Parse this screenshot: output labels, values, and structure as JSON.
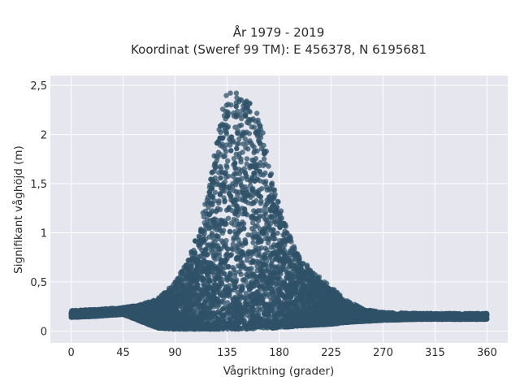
{
  "chart_data": {
    "type": "scatter",
    "title_line1": "År 1979 - 2019",
    "title_line2": "Koordinat (Sweref 99 TM): E 456378, N 6195681",
    "xlabel": "Vågriktning (grader)",
    "ylabel": "Signifikant våghöjd (m)",
    "xlim": [
      -18,
      378
    ],
    "ylim": [
      -0.12,
      2.6
    ],
    "xticks": [
      0,
      45,
      90,
      135,
      180,
      225,
      270,
      315,
      360
    ],
    "xtick_labels": [
      "0",
      "45",
      "90",
      "135",
      "180",
      "225",
      "270",
      "315",
      "360"
    ],
    "yticks": [
      0,
      0.5,
      1,
      1.5,
      2,
      2.5
    ],
    "ytick_labels": [
      "0",
      "0,5",
      "1",
      "1,5",
      "2",
      "2,5"
    ],
    "grid": true,
    "point_color": "#2f5168",
    "plot_background": "#e5e6ee",
    "envelope": {
      "x": [
        0,
        20,
        45,
        60,
        75,
        90,
        100,
        110,
        120,
        128,
        135,
        145,
        155,
        165,
        175,
        185,
        195,
        210,
        225,
        240,
        255,
        270,
        300,
        330,
        360
      ],
      "upper": [
        0.21,
        0.22,
        0.24,
        0.27,
        0.33,
        0.5,
        0.7,
        1.0,
        1.5,
        2.1,
        2.45,
        2.42,
        2.4,
        2.1,
        1.5,
        1.1,
        0.8,
        0.6,
        0.45,
        0.3,
        0.22,
        0.19,
        0.18,
        0.18,
        0.18
      ],
      "lower": [
        0.14,
        0.15,
        0.17,
        0.1,
        0.03,
        0.02,
        0.02,
        0.02,
        0.02,
        0.02,
        0.02,
        0.02,
        0.02,
        0.03,
        0.03,
        0.04,
        0.05,
        0.06,
        0.07,
        0.09,
        0.1,
        0.11,
        0.12,
        0.12,
        0.12
      ]
    }
  }
}
